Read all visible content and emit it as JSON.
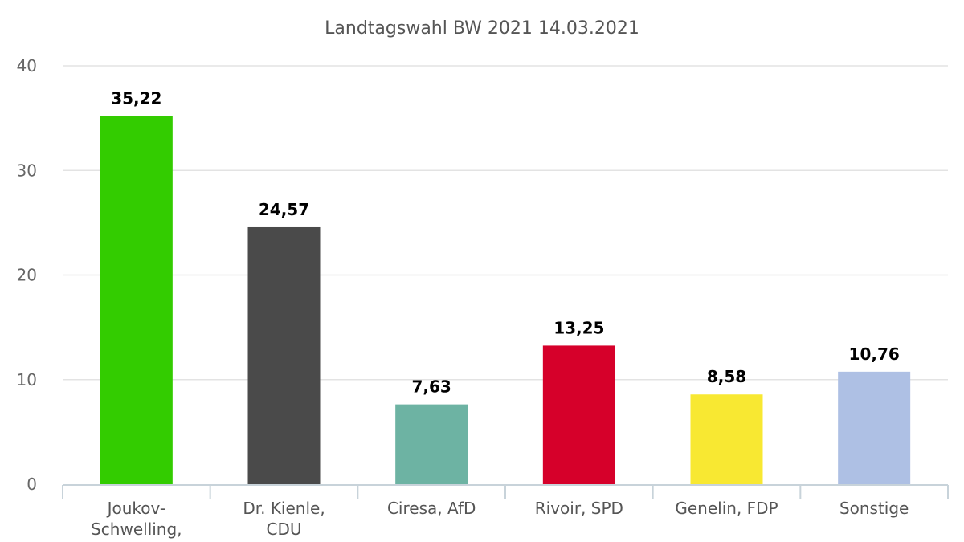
{
  "chart_data": {
    "type": "bar",
    "title": "Landtagswahl BW 2021 14.03.2021",
    "xlabel": "",
    "ylabel": "",
    "ylim": [
      0,
      40
    ],
    "yticks": [
      0,
      10,
      20,
      30,
      40
    ],
    "grid": true,
    "legend": "none",
    "categories": [
      [
        "Joukov-",
        "Schwelling,"
      ],
      [
        "Dr. Kienle,",
        "CDU"
      ],
      [
        "Ciresa, AfD"
      ],
      [
        "Rivoir, SPD"
      ],
      [
        "Genelin, FDP"
      ],
      [
        "Sonstige"
      ]
    ],
    "values": [
      35.22,
      24.57,
      7.63,
      13.25,
      8.58,
      10.76
    ],
    "value_labels": [
      "35,22",
      "24,57",
      "7,63",
      "13,25",
      "8,58",
      "10,76"
    ],
    "colors": [
      "#33cc00",
      "#4a4a4a",
      "#6db3a3",
      "#d6002a",
      "#f8e832",
      "#aec0e4"
    ]
  }
}
